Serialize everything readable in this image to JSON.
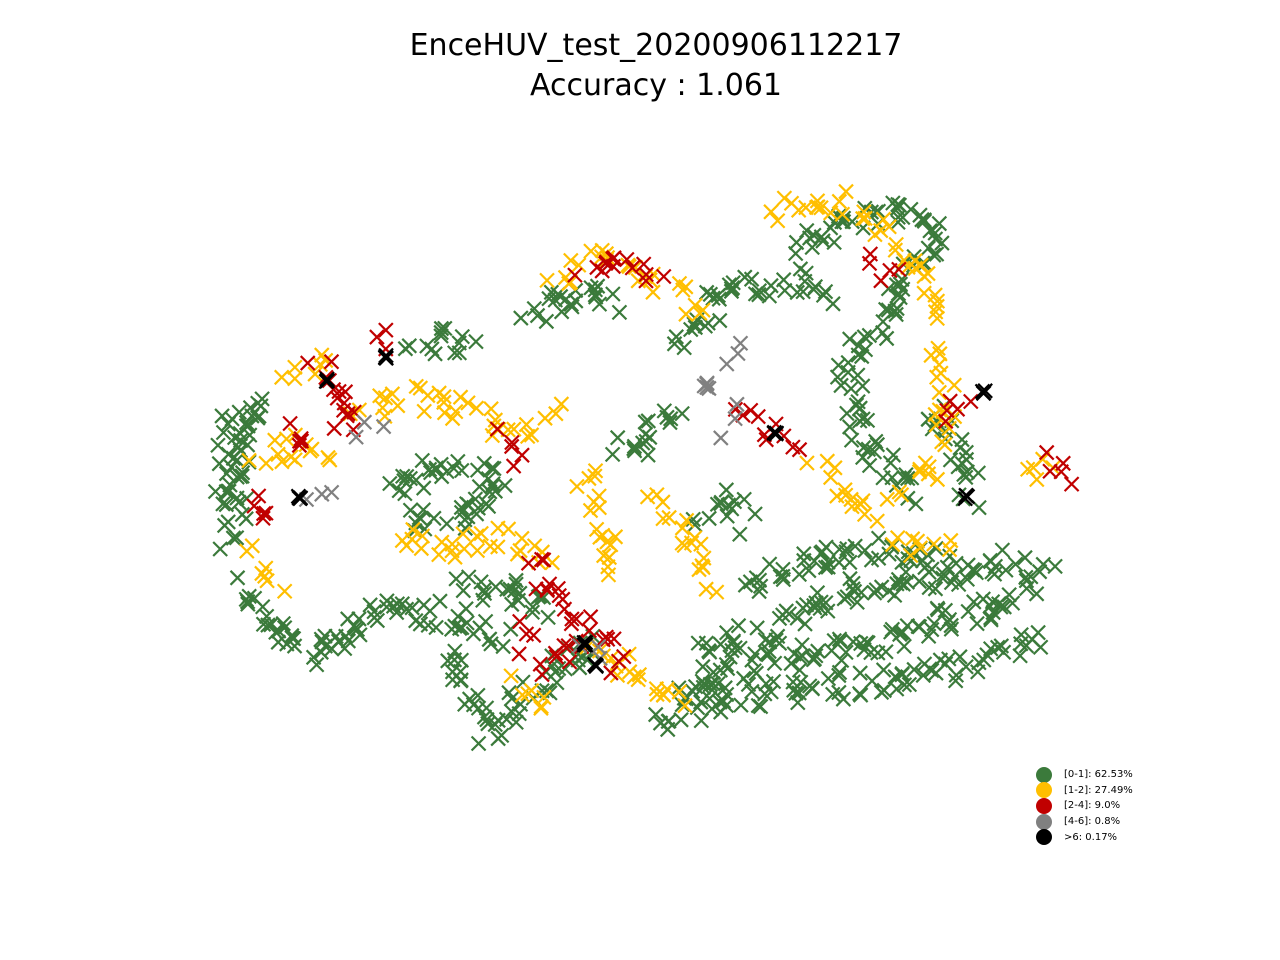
{
  "chart_data": {
    "type": "scatter",
    "title": "EnceHUV_test_20200906112217",
    "subtitle": "Accuracy : 1.061",
    "marker": "x",
    "grid": false,
    "axes_visible": false,
    "legend_position": "lower-right",
    "legend": [
      {
        "label": "[0-1]: 62.53%",
        "color": "#3b7a3b"
      },
      {
        "label": "[1-2]: 27.49%",
        "color": "#ffbf00"
      },
      {
        "label": "[2-4]: 9.0%",
        "color": "#c00000"
      },
      {
        "label": "[4-6]: 0.8%",
        "color": "#808080"
      },
      {
        "label": ">6: 0.17%",
        "color": "#000000"
      }
    ],
    "series": [
      {
        "color": "#3b7a3b",
        "paths": [
          [
            [
              0.02,
              0.55
            ],
            [
              0.03,
              0.42
            ],
            [
              0.06,
              0.4
            ],
            [
              0.04,
              0.5
            ],
            [
              0.03,
              0.62
            ]
          ],
          [
            [
              0.05,
              0.7
            ],
            [
              0.08,
              0.78
            ],
            [
              0.14,
              0.82
            ],
            [
              0.18,
              0.76
            ],
            [
              0.22,
              0.74
            ],
            [
              0.3,
              0.76
            ],
            [
              0.35,
              0.79
            ]
          ],
          [
            [
              0.28,
              0.82
            ],
            [
              0.33,
              0.95
            ],
            [
              0.4,
              0.85
            ],
            [
              0.45,
              0.8
            ]
          ],
          [
            [
              0.22,
              0.55
            ],
            [
              0.27,
              0.5
            ],
            [
              0.34,
              0.52
            ],
            [
              0.3,
              0.58
            ],
            [
              0.23,
              0.6
            ]
          ],
          [
            [
              0.24,
              0.3
            ],
            [
              0.27,
              0.28
            ],
            [
              0.3,
              0.3
            ]
          ],
          [
            [
              0.38,
              0.25
            ],
            [
              0.43,
              0.2
            ],
            [
              0.47,
              0.22
            ]
          ],
          [
            [
              0.55,
              0.28
            ],
            [
              0.6,
              0.2
            ],
            [
              0.67,
              0.18
            ],
            [
              0.72,
              0.2
            ]
          ],
          [
            [
              0.68,
              0.12
            ],
            [
              0.74,
              0.08
            ],
            [
              0.8,
              0.06
            ],
            [
              0.84,
              0.1
            ],
            [
              0.8,
              0.22
            ],
            [
              0.77,
              0.3
            ]
          ],
          [
            [
              0.74,
              0.3
            ],
            [
              0.76,
              0.45
            ],
            [
              0.82,
              0.55
            ]
          ],
          [
            [
              0.84,
              0.4
            ],
            [
              0.87,
              0.48
            ],
            [
              0.89,
              0.55
            ]
          ],
          [
            [
              0.58,
              0.82
            ],
            [
              0.65,
              0.78
            ],
            [
              0.72,
              0.72
            ],
            [
              0.8,
              0.7
            ],
            [
              0.88,
              0.68
            ],
            [
              0.94,
              0.66
            ]
          ],
          [
            [
              0.55,
              0.88
            ],
            [
              0.62,
              0.84
            ],
            [
              0.7,
              0.82
            ],
            [
              0.78,
              0.8
            ],
            [
              0.86,
              0.76
            ],
            [
              0.92,
              0.74
            ],
            [
              0.97,
              0.68
            ]
          ],
          [
            [
              0.52,
              0.93
            ],
            [
              0.6,
              0.9
            ],
            [
              0.7,
              0.88
            ],
            [
              0.8,
              0.86
            ],
            [
              0.88,
              0.84
            ],
            [
              0.96,
              0.8
            ]
          ],
          [
            [
              0.62,
              0.7
            ],
            [
              0.7,
              0.66
            ],
            [
              0.78,
              0.64
            ],
            [
              0.86,
              0.66
            ]
          ],
          [
            [
              0.3,
              0.7
            ],
            [
              0.36,
              0.72
            ],
            [
              0.4,
              0.74
            ]
          ],
          [
            [
              0.48,
              0.48
            ],
            [
              0.52,
              0.44
            ],
            [
              0.55,
              0.4
            ]
          ],
          [
            [
              0.57,
              0.6
            ],
            [
              0.6,
              0.56
            ],
            [
              0.63,
              0.6
            ]
          ]
        ]
      },
      {
        "color": "#ffbf00",
        "paths": [
          [
            [
              0.06,
              0.48
            ],
            [
              0.1,
              0.46
            ],
            [
              0.14,
              0.48
            ]
          ],
          [
            [
              0.05,
              0.65
            ],
            [
              0.08,
              0.7
            ]
          ],
          [
            [
              0.18,
              0.4
            ],
            [
              0.24,
              0.38
            ],
            [
              0.3,
              0.4
            ],
            [
              0.36,
              0.44
            ],
            [
              0.4,
              0.4
            ]
          ],
          [
            [
              0.22,
              0.62
            ],
            [
              0.28,
              0.64
            ],
            [
              0.34,
              0.62
            ],
            [
              0.4,
              0.66
            ]
          ],
          [
            [
              0.44,
              0.5
            ],
            [
              0.46,
              0.6
            ],
            [
              0.48,
              0.68
            ]
          ],
          [
            [
              0.52,
              0.55
            ],
            [
              0.56,
              0.62
            ],
            [
              0.58,
              0.7
            ]
          ],
          [
            [
              0.45,
              0.8
            ],
            [
              0.5,
              0.86
            ],
            [
              0.55,
              0.9
            ]
          ],
          [
            [
              0.36,
              0.86
            ],
            [
              0.4,
              0.9
            ]
          ],
          [
            [
              0.4,
              0.18
            ],
            [
              0.46,
              0.14
            ],
            [
              0.52,
              0.18
            ],
            [
              0.58,
              0.24
            ]
          ],
          [
            [
              0.66,
              0.06
            ],
            [
              0.72,
              0.04
            ],
            [
              0.78,
              0.08
            ],
            [
              0.82,
              0.16
            ],
            [
              0.86,
              0.24
            ]
          ],
          [
            [
              0.84,
              0.3
            ],
            [
              0.86,
              0.4
            ],
            [
              0.84,
              0.5
            ],
            [
              0.8,
              0.54
            ]
          ],
          [
            [
              0.7,
              0.5
            ],
            [
              0.74,
              0.54
            ],
            [
              0.78,
              0.58
            ]
          ],
          [
            [
              0.96,
              0.52
            ],
            [
              0.98,
              0.48
            ]
          ],
          [
            [
              0.8,
              0.64
            ],
            [
              0.86,
              0.62
            ]
          ],
          [
            [
              0.1,
              0.34
            ],
            [
              0.14,
              0.3
            ]
          ]
        ]
      },
      {
        "color": "#c00000",
        "paths": [
          [
            [
              0.13,
              0.32
            ],
            [
              0.15,
              0.36
            ],
            [
              0.17,
              0.4
            ],
            [
              0.16,
              0.44
            ]
          ],
          [
            [
              0.2,
              0.26
            ],
            [
              0.22,
              0.28
            ]
          ],
          [
            [
              0.38,
              0.66
            ],
            [
              0.4,
              0.72
            ],
            [
              0.44,
              0.76
            ],
            [
              0.42,
              0.8
            ],
            [
              0.4,
              0.84
            ]
          ],
          [
            [
              0.36,
              0.78
            ],
            [
              0.38,
              0.82
            ]
          ],
          [
            [
              0.44,
              0.16
            ],
            [
              0.48,
              0.14
            ],
            [
              0.52,
              0.18
            ]
          ],
          [
            [
              0.62,
              0.4
            ],
            [
              0.65,
              0.44
            ],
            [
              0.68,
              0.46
            ]
          ],
          [
            [
              0.85,
              0.42
            ],
            [
              0.88,
              0.4
            ]
          ],
          [
            [
              0.98,
              0.49
            ],
            [
              0.99,
              0.53
            ]
          ],
          [
            [
              0.09,
              0.44
            ],
            [
              0.12,
              0.46
            ]
          ],
          [
            [
              0.08,
              0.56
            ],
            [
              0.05,
              0.58
            ]
          ],
          [
            [
              0.34,
              0.44
            ],
            [
              0.36,
              0.48
            ]
          ],
          [
            [
              0.46,
              0.78
            ],
            [
              0.48,
              0.84
            ]
          ],
          [
            [
              0.77,
              0.14
            ],
            [
              0.79,
              0.18
            ]
          ]
        ]
      },
      {
        "color": "#808080",
        "paths": [
          [
            [
              0.12,
              0.56
            ],
            [
              0.14,
              0.55
            ]
          ],
          [
            [
              0.18,
              0.44
            ],
            [
              0.2,
              0.42
            ]
          ],
          [
            [
              0.44,
              0.8
            ],
            [
              0.46,
              0.82
            ]
          ],
          [
            [
              0.6,
              0.44
            ],
            [
              0.62,
              0.4
            ]
          ],
          [
            [
              0.62,
              0.28
            ],
            [
              0.6,
              0.33
            ]
          ],
          [
            [
              0.58,
              0.36
            ]
          ]
        ]
      },
      {
        "color": "#000000",
        "paths": [
          [
            [
              0.14,
              0.35
            ]
          ],
          [
            [
              0.21,
              0.31
            ]
          ],
          [
            [
              0.44,
              0.8
            ]
          ],
          [
            [
              0.66,
              0.44
            ]
          ],
          [
            [
              0.88,
              0.55
            ]
          ],
          [
            [
              0.9,
              0.37
            ]
          ],
          [
            [
              0.11,
              0.55
            ]
          ],
          [
            [
              0.45,
              0.84
            ]
          ]
        ]
      }
    ]
  }
}
